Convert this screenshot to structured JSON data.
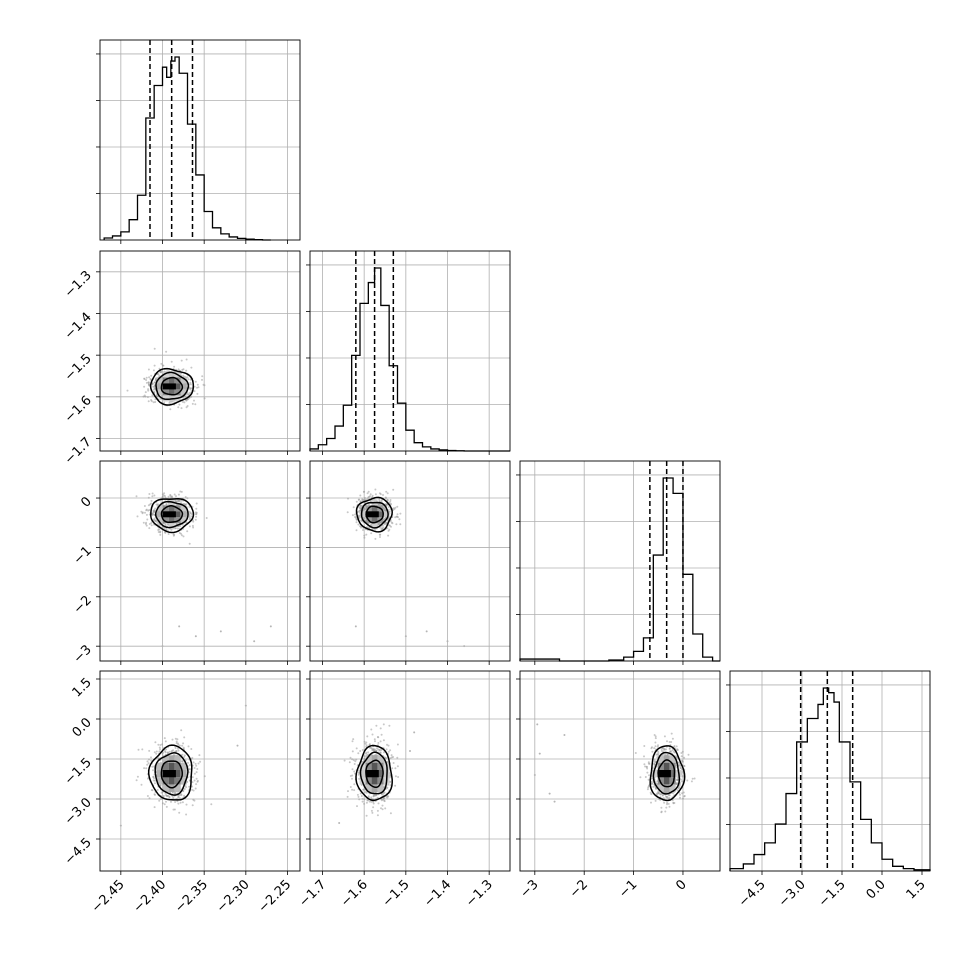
{
  "chart_data": {
    "type": "corner",
    "grid": true,
    "params": [
      {
        "range": [
          -2.475,
          -2.235
        ],
        "ticks": [
          -2.45,
          -2.4,
          -2.35,
          -2.3,
          -2.25
        ],
        "tick_labels": [
          "−2.45",
          "−2.40",
          "−2.35",
          "−2.30",
          "−2.25"
        ],
        "quantiles": [
          -2.415,
          -2.389,
          -2.364
        ],
        "hist_bins": [
          -2.47,
          -2.46,
          -2.45,
          -2.44,
          -2.43,
          -2.42,
          -2.41,
          -2.4,
          -2.395,
          -2.39,
          -2.385,
          -2.38,
          -2.37,
          -2.36,
          -2.35,
          -2.34,
          -2.33,
          -2.32,
          -2.31,
          -2.3,
          -2.29,
          -2.28,
          -2.27
        ],
        "hist_values": [
          0.01,
          0.02,
          0.04,
          0.1,
          0.22,
          0.6,
          0.76,
          0.85,
          0.8,
          0.88,
          0.9,
          0.82,
          0.57,
          0.32,
          0.14,
          0.06,
          0.03,
          0.015,
          0.008,
          0.004,
          0.002,
          0.0
        ]
      },
      {
        "range": [
          -1.73,
          -1.25
        ],
        "ticks": [
          -1.7,
          -1.6,
          -1.5,
          -1.4,
          -1.3
        ],
        "tick_labels": [
          "−1.7",
          "−1.6",
          "−1.5",
          "−1.4",
          "−1.3"
        ],
        "quantiles": [
          -1.62,
          -1.575,
          -1.53
        ],
        "hist_bins": [
          -1.73,
          -1.71,
          -1.69,
          -1.67,
          -1.65,
          -1.63,
          -1.61,
          -1.59,
          -1.575,
          -1.56,
          -1.54,
          -1.52,
          -1.5,
          -1.48,
          -1.46,
          -1.44,
          -1.42,
          -1.4,
          -1.38,
          -1.36,
          -1.34,
          -1.32,
          -1.3,
          -1.28,
          -1.25
        ],
        "hist_values": [
          0.01,
          0.03,
          0.06,
          0.12,
          0.22,
          0.46,
          0.71,
          0.81,
          0.88,
          0.7,
          0.41,
          0.23,
          0.1,
          0.04,
          0.02,
          0.01,
          0.005,
          0.002,
          0.001,
          0.0,
          0.0,
          0.0,
          0.0,
          0.0
        ]
      },
      {
        "range": [
          -3.3,
          0.75
        ],
        "ticks": [
          -3,
          -2,
          -1,
          0
        ],
        "tick_labels": [
          "−3",
          "−2",
          "−1",
          "0"
        ],
        "quantiles": [
          -0.67,
          -0.33,
          0.0
        ],
        "hist_bins": [
          -3.3,
          -2.5,
          -1.5,
          -1.2,
          -1.0,
          -0.8,
          -0.6,
          -0.4,
          -0.2,
          0.0,
          0.2,
          0.4,
          0.6,
          0.75
        ],
        "hist_values": [
          0.01,
          0.0,
          0.005,
          0.02,
          0.05,
          0.12,
          0.55,
          0.95,
          0.87,
          0.45,
          0.14,
          0.02,
          0.0
        ]
      },
      {
        "range": [
          -5.7,
          1.8
        ],
        "ticks": [
          -4.5,
          -3.0,
          -1.5,
          0.0,
          1.5
        ],
        "tick_labels": [
          "−4.5",
          "−3.0",
          "−1.5",
          "0.0",
          "1.5"
        ],
        "quantiles": [
          -3.05,
          -2.05,
          -1.1
        ],
        "hist_bins": [
          -5.7,
          -5.2,
          -4.8,
          -4.4,
          -4.0,
          -3.6,
          -3.2,
          -2.8,
          -2.4,
          -2.2,
          -2.0,
          -1.8,
          -1.6,
          -1.2,
          -0.8,
          -0.4,
          0.0,
          0.4,
          0.8,
          1.2,
          1.8
        ],
        "hist_values": [
          0.01,
          0.03,
          0.07,
          0.12,
          0.2,
          0.33,
          0.55,
          0.65,
          0.71,
          0.78,
          0.76,
          0.72,
          0.55,
          0.38,
          0.22,
          0.12,
          0.05,
          0.02,
          0.01,
          0.005
        ]
      }
    ],
    "contour_levels": [
      0.39,
      0.86,
      0.99
    ],
    "pairs": [
      {
        "xi": 0,
        "yi": 1,
        "center": [
          -2.389,
          -1.575
        ],
        "sd": [
          0.0125,
          0.0205
        ],
        "outliers": []
      },
      {
        "xi": 0,
        "yi": 2,
        "center": [
          -2.389,
          -0.33
        ],
        "sd": [
          0.0125,
          0.165
        ],
        "outliers": [
          [
            -2.38,
            -2.6
          ],
          [
            -2.33,
            -2.7
          ],
          [
            -2.29,
            -2.9
          ],
          [
            -2.4,
            -3.0
          ],
          [
            -2.36,
            -2.8
          ],
          [
            -2.27,
            -2.6
          ]
        ]
      },
      {
        "xi": 1,
        "yi": 2,
        "center": [
          -1.575,
          -0.33
        ],
        "sd": [
          0.0205,
          0.165
        ],
        "outliers": [
          [
            -1.45,
            -2.7
          ],
          [
            -1.4,
            -2.9
          ],
          [
            -1.36,
            -3.0
          ],
          [
            -1.5,
            -2.8
          ],
          [
            -1.62,
            -2.6
          ]
        ]
      },
      {
        "xi": 0,
        "yi": 3,
        "center": [
          -2.389,
          -2.05
        ],
        "sd": [
          0.0125,
          0.5
        ],
        "outliers": [
          [
            -2.31,
            -1.0
          ],
          [
            -2.3,
            0.5
          ],
          [
            -2.45,
            -4.0
          ]
        ]
      },
      {
        "xi": 1,
        "yi": 3,
        "center": [
          -1.575,
          -2.05
        ],
        "sd": [
          0.0205,
          0.5
        ],
        "outliers": [
          [
            -1.48,
            -0.5
          ],
          [
            -1.49,
            -1.2
          ],
          [
            -1.66,
            -3.9
          ]
        ]
      },
      {
        "xi": 2,
        "yi": 3,
        "center": [
          -0.33,
          -2.05
        ],
        "sd": [
          0.165,
          0.5
        ],
        "outliers": [
          [
            -2.9,
            -1.3
          ],
          [
            -3.0,
            -2.1
          ],
          [
            -2.7,
            -2.8
          ],
          [
            -2.4,
            -0.6
          ],
          [
            -2.95,
            -0.2
          ],
          [
            -2.6,
            -3.1
          ]
        ]
      }
    ]
  }
}
